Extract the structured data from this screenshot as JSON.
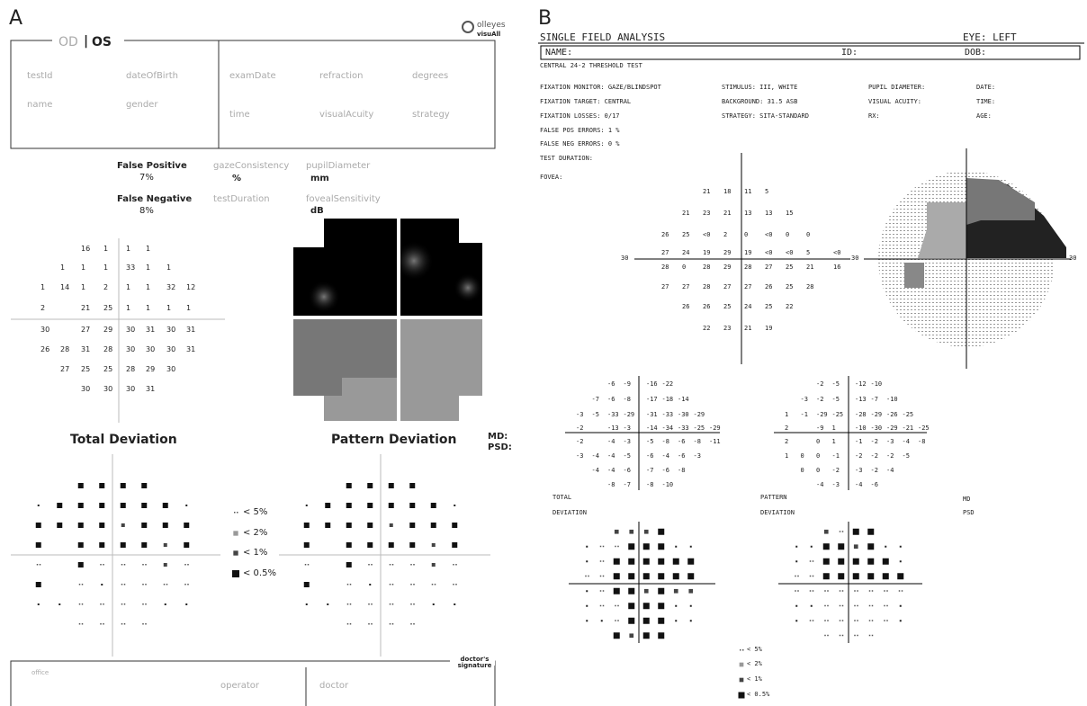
{
  "panel_a": {
    "label": "A",
    "logo": {
      "name": "olleyes",
      "product": "visuAll"
    },
    "eye": {
      "od": "OD",
      "separator": "|",
      "os": "OS"
    },
    "header_fields": [
      "testId",
      "dateOfBirth",
      "examDate",
      "refraction",
      "degrees",
      "name",
      "gender",
      "time",
      "visualAcuity",
      "strategy"
    ],
    "false_positive": {
      "label": "False Positive",
      "value": "7%"
    },
    "false_negative": {
      "label": "False Negative",
      "value": "8%"
    },
    "metrics": [
      {
        "label": "gazeConsistency",
        "unit": "%"
      },
      {
        "label": "testDuration"
      },
      {
        "label": "pupilDiameter",
        "unit": "mm"
      },
      {
        "label": "fovealSensitivity",
        "unit": "dB"
      }
    ],
    "threshold_grid": [
      [
        null,
        null,
        16,
        1,
        1,
        1,
        null,
        null
      ],
      [
        null,
        1,
        1,
        1,
        33,
        1,
        1,
        null
      ],
      [
        1,
        14,
        1,
        2,
        1,
        1,
        32,
        12
      ],
      [
        2,
        null,
        21,
        25,
        1,
        1,
        1,
        1
      ],
      [
        30,
        null,
        27,
        29,
        30,
        31,
        30,
        31
      ],
      [
        26,
        28,
        31,
        28,
        30,
        30,
        30,
        31
      ],
      [
        null,
        27,
        25,
        25,
        28,
        29,
        30,
        null
      ],
      [
        null,
        null,
        30,
        30,
        30,
        31,
        null,
        null
      ]
    ],
    "total_deviation_title": "Total Deviation",
    "pattern_deviation_title": "Pattern Deviation",
    "md": "MD:",
    "psd": "PSD:",
    "legend": [
      "< 5%",
      "< 2%",
      "< 1%",
      "< 0.5%"
    ],
    "footer": {
      "office": "office",
      "operator": "operator",
      "doctor": "doctor",
      "signature": "doctor's signature"
    }
  },
  "panel_b": {
    "label": "B",
    "title": "SINGLE FIELD ANALYSIS",
    "eye": "EYE: LEFT",
    "name": "NAME:",
    "id": "ID:",
    "dob": "DOB:",
    "test": "CENTRAL 24-2 THRESHOLD TEST",
    "info_left": [
      "FIXATION MONITOR: GAZE/BLINDSPOT",
      "FIXATION TARGET: CENTRAL",
      "FIXATION LOSSES: 0/17",
      "FALSE POS ERRORS: 1 %",
      "FALSE NEG ERRORS: 0 %",
      "TEST DURATION:",
      "FOVEA:"
    ],
    "info_mid": [
      "STIMULUS: III, WHITE",
      "BACKGROUND: 31.5 ASB",
      "STRATEGY: SITA-STANDARD"
    ],
    "info_right": [
      "PUPIL DIAMETER:",
      "VISUAL ACUITY:",
      "RX:"
    ],
    "info_far": [
      "DATE:",
      "TIME:",
      "AGE:"
    ],
    "axis_label": "30",
    "threshold_grid": [
      [
        null,
        null,
        21,
        18,
        11,
        5,
        null,
        null,
        null
      ],
      [
        null,
        21,
        23,
        21,
        13,
        13,
        15,
        null,
        null
      ],
      [
        26,
        25,
        "<0",
        2,
        0,
        "<0",
        0,
        0,
        null
      ],
      [
        27,
        24,
        19,
        29,
        19,
        "<0",
        "<0",
        5,
        "<0"
      ],
      [
        28,
        0,
        28,
        29,
        28,
        27,
        25,
        21,
        16
      ],
      [
        27,
        27,
        28,
        27,
        27,
        26,
        25,
        28,
        null
      ],
      [
        null,
        26,
        26,
        25,
        24,
        25,
        22,
        null,
        null
      ],
      [
        null,
        null,
        22,
        23,
        21,
        19,
        null,
        null,
        null
      ]
    ],
    "total_deviation_grid": [
      [
        null,
        null,
        -6,
        -9,
        -16,
        -22,
        null,
        null,
        null
      ],
      [
        null,
        -7,
        -6,
        -8,
        -17,
        -18,
        -14,
        null,
        null
      ],
      [
        -3,
        -5,
        -33,
        -29,
        -31,
        -33,
        -30,
        -29,
        null
      ],
      [
        -2,
        null,
        -13,
        -3,
        -14,
        -34,
        -33,
        -25,
        -29
      ],
      [
        -2,
        null,
        -4,
        -3,
        -5,
        -8,
        -6,
        -8,
        -11
      ],
      [
        -3,
        -4,
        -4,
        -5,
        -6,
        -4,
        -6,
        -3,
        null
      ],
      [
        null,
        -4,
        -4,
        -6,
        -7,
        -6,
        -8,
        null,
        null
      ],
      [
        null,
        null,
        -8,
        -7,
        -8,
        -10,
        null,
        null,
        null
      ]
    ],
    "pattern_deviation_grid": [
      [
        null,
        null,
        -2,
        -5,
        -12,
        -10,
        null,
        null,
        null
      ],
      [
        null,
        -3,
        -2,
        -5,
        -13,
        -7,
        -10,
        null,
        null
      ],
      [
        1,
        -1,
        -29,
        -25,
        -28,
        -29,
        -26,
        -25,
        null
      ],
      [
        2,
        null,
        -9,
        1,
        -10,
        -30,
        -29,
        -21,
        -25
      ],
      [
        2,
        null,
        0,
        1,
        -1,
        -2,
        -3,
        -4,
        -8
      ],
      [
        1,
        0,
        0,
        -1,
        -2,
        -2,
        -2,
        -5,
        null
      ],
      [
        null,
        0,
        0,
        -2,
        -3,
        -2,
        -4,
        null,
        null
      ],
      [
        null,
        null,
        -4,
        -3,
        -4,
        -6,
        null,
        null,
        null
      ]
    ],
    "total_deviation_title": [
      "TOTAL",
      "DEVIATION"
    ],
    "pattern_deviation_title": [
      "PATTERN",
      "DEVIATION"
    ],
    "md": "MD",
    "psd": "PSD",
    "legend": [
      "< 5%",
      "< 2%",
      "< 1%",
      "< 0.5%"
    ]
  }
}
